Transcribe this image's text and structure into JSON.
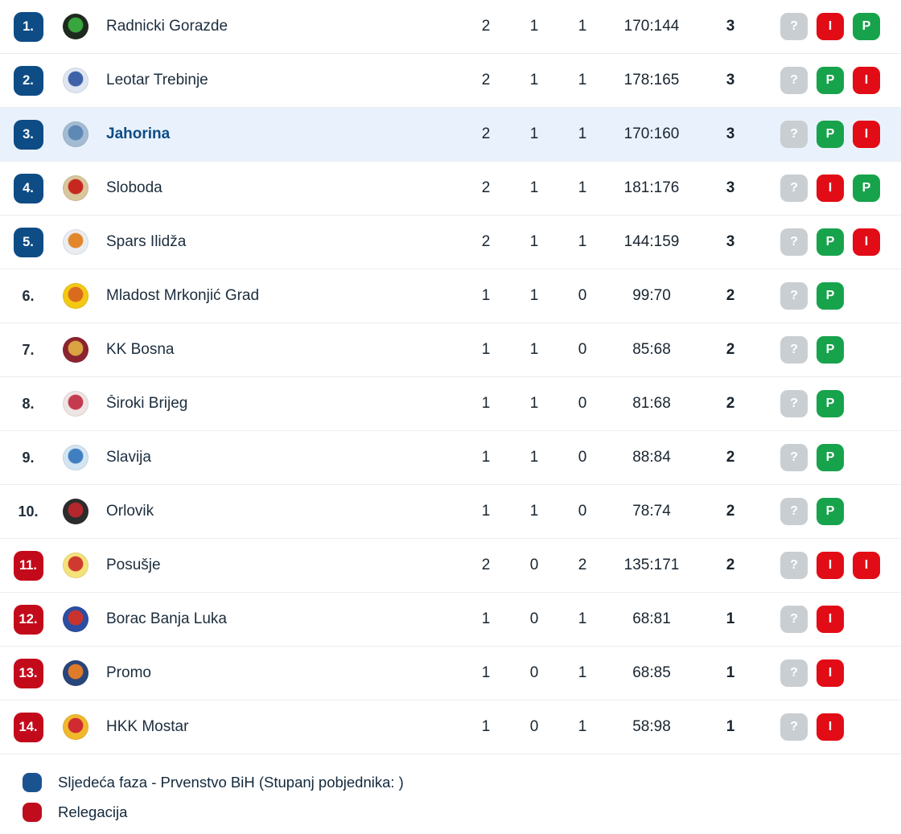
{
  "table": {
    "column_semantics": [
      "rank",
      "logo",
      "team",
      "played",
      "wins",
      "losses",
      "score",
      "points",
      "form"
    ],
    "rows": [
      {
        "rank": "1.",
        "zone": "next-phase",
        "highlighted": false,
        "team": "Radnicki Gorazde",
        "played": "2",
        "wins": "1",
        "losses": "1",
        "score": "170:144",
        "points": "3",
        "form": [
          "?",
          "I",
          "P"
        ],
        "logo": {
          "primary": "#1f2a1e",
          "secondary": "#37a63c"
        }
      },
      {
        "rank": "2.",
        "zone": "next-phase",
        "highlighted": false,
        "team": "Leotar Trebinje",
        "played": "2",
        "wins": "1",
        "losses": "1",
        "score": "178:165",
        "points": "3",
        "form": [
          "?",
          "P",
          "I"
        ],
        "logo": {
          "primary": "#dfe6f2",
          "secondary": "#3d62a8"
        }
      },
      {
        "rank": "3.",
        "zone": "next-phase",
        "highlighted": true,
        "team": "Jahorina",
        "played": "2",
        "wins": "1",
        "losses": "1",
        "score": "170:160",
        "points": "3",
        "form": [
          "?",
          "P",
          "I"
        ],
        "logo": {
          "primary": "#a4bcd3",
          "secondary": "#5e88b5"
        }
      },
      {
        "rank": "4.",
        "zone": "next-phase",
        "highlighted": false,
        "team": "Sloboda",
        "played": "2",
        "wins": "1",
        "losses": "1",
        "score": "181:176",
        "points": "3",
        "form": [
          "?",
          "I",
          "P"
        ],
        "logo": {
          "primary": "#d9c69c",
          "secondary": "#c6271f"
        }
      },
      {
        "rank": "5.",
        "zone": "next-phase",
        "highlighted": false,
        "team": "Spars Ilidža",
        "played": "2",
        "wins": "1",
        "losses": "1",
        "score": "144:159",
        "points": "3",
        "form": [
          "?",
          "P",
          "I"
        ],
        "logo": {
          "primary": "#e9edf2",
          "secondary": "#e2862d"
        }
      },
      {
        "rank": "6.",
        "zone": "none",
        "highlighted": false,
        "team": "Mladost Mrkonjić Grad",
        "played": "1",
        "wins": "1",
        "losses": "0",
        "score": "99:70",
        "points": "2",
        "form": [
          "?",
          "P"
        ],
        "logo": {
          "primary": "#f3c913",
          "secondary": "#d96a1e"
        }
      },
      {
        "rank": "7.",
        "zone": "none",
        "highlighted": false,
        "team": "KK Bosna",
        "played": "1",
        "wins": "1",
        "losses": "0",
        "score": "85:68",
        "points": "2",
        "form": [
          "?",
          "P"
        ],
        "logo": {
          "primary": "#8c2330",
          "secondary": "#d9a441"
        }
      },
      {
        "rank": "8.",
        "zone": "none",
        "highlighted": false,
        "team": "Široki Brijeg",
        "played": "1",
        "wins": "1",
        "losses": "0",
        "score": "81:68",
        "points": "2",
        "form": [
          "?",
          "P"
        ],
        "logo": {
          "primary": "#efe4e4",
          "secondary": "#c43b4e"
        }
      },
      {
        "rank": "9.",
        "zone": "none",
        "highlighted": false,
        "team": "Slavija",
        "played": "1",
        "wins": "1",
        "losses": "0",
        "score": "88:84",
        "points": "2",
        "form": [
          "?",
          "P"
        ],
        "logo": {
          "primary": "#d3e4f2",
          "secondary": "#3f7fc1"
        }
      },
      {
        "rank": "10.",
        "zone": "none",
        "highlighted": false,
        "team": "Orlovik",
        "played": "1",
        "wins": "1",
        "losses": "0",
        "score": "78:74",
        "points": "2",
        "form": [
          "?",
          "P"
        ],
        "logo": {
          "primary": "#2d2c2c",
          "secondary": "#b3272d"
        }
      },
      {
        "rank": "11.",
        "zone": "relegation",
        "highlighted": false,
        "team": "Posušje",
        "played": "2",
        "wins": "0",
        "losses": "2",
        "score": "135:171",
        "points": "2",
        "form": [
          "?",
          "I",
          "I"
        ],
        "logo": {
          "primary": "#f5e27a",
          "secondary": "#cf3a2e"
        }
      },
      {
        "rank": "12.",
        "zone": "relegation",
        "highlighted": false,
        "team": "Borac Banja Luka",
        "played": "1",
        "wins": "0",
        "losses": "1",
        "score": "68:81",
        "points": "1",
        "form": [
          "?",
          "I"
        ],
        "logo": {
          "primary": "#2b4ea2",
          "secondary": "#c8332e"
        }
      },
      {
        "rank": "13.",
        "zone": "relegation",
        "highlighted": false,
        "team": "Promo",
        "played": "1",
        "wins": "0",
        "losses": "1",
        "score": "68:85",
        "points": "1",
        "form": [
          "?",
          "I"
        ],
        "logo": {
          "primary": "#28457c",
          "secondary": "#e07b2a"
        }
      },
      {
        "rank": "14.",
        "zone": "relegation",
        "highlighted": false,
        "team": "HKK Mostar",
        "played": "1",
        "wins": "0",
        "losses": "1",
        "score": "58:98",
        "points": "1",
        "form": [
          "?",
          "I"
        ],
        "logo": {
          "primary": "#f0b92d",
          "secondary": "#cf2b31"
        }
      }
    ]
  },
  "legend": [
    {
      "color": "#1b5391",
      "label": "Sljedeća faza - Prvenstvo BiH (Stupanj pobjednika: )"
    },
    {
      "color": "#c00d1d",
      "label": "Relegacija"
    }
  ],
  "colors": {
    "next_phase_badge": "#0e4c85",
    "relegation_badge": "#c30a1b",
    "form_win": "#17a34b",
    "form_loss": "#e20c16",
    "form_unknown": "#c9ced2",
    "highlight_row": "#e9f2fc"
  },
  "form_legend": {
    "win_letter": "P",
    "loss_letter": "I",
    "unknown_letter": "?"
  }
}
